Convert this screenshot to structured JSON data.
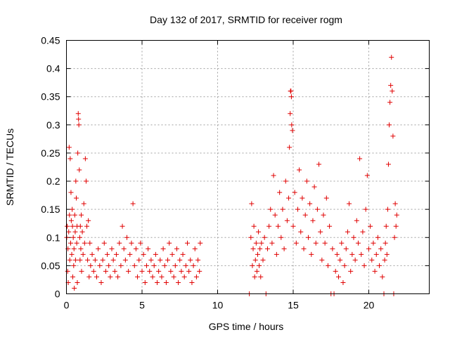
{
  "chart_data": {
    "type": "scatter",
    "title": "Day 132 of 2017, SRMTID for receiver rogm",
    "xlabel": "GPS time / hours",
    "ylabel": "SRMTID / TECUs",
    "xlim": [
      0,
      24
    ],
    "ylim": [
      0,
      0.45
    ],
    "x_ticks": [
      0,
      5,
      10,
      15,
      20
    ],
    "x_tick_labels": [
      "0",
      "5",
      "10",
      "15",
      "20"
    ],
    "y_ticks": [
      0,
      0.05,
      0.1,
      0.15,
      0.2,
      0.25,
      0.3,
      0.35,
      0.4,
      0.45
    ],
    "y_tick_labels": [
      "0",
      "0.05",
      "0.1",
      "0.15",
      "0.2",
      "0.25",
      "0.3",
      "0.35",
      "0.4",
      "0.45"
    ],
    "grid": true,
    "marker": "+",
    "color": "#e00000",
    "series": [
      {
        "name": "SRMTID",
        "points": [
          [
            0.02,
            0.1
          ],
          [
            0.05,
            0.12
          ],
          [
            0.08,
            0.04
          ],
          [
            0.1,
            0.08
          ],
          [
            0.12,
            0.02
          ],
          [
            0.15,
            0.11
          ],
          [
            0.18,
            0.26
          ],
          [
            0.2,
            0.14
          ],
          [
            0.22,
            0.06
          ],
          [
            0.25,
            0.24
          ],
          [
            0.28,
            0.09
          ],
          [
            0.3,
            0.18
          ],
          [
            0.32,
            0.13
          ],
          [
            0.35,
            0.07
          ],
          [
            0.38,
            0.15
          ],
          [
            0.4,
            0.12
          ],
          [
            0.42,
            0.03
          ],
          [
            0.45,
            0.1
          ],
          [
            0.48,
            0.05
          ],
          [
            0.5,
            0.08
          ],
          [
            0.52,
            0.01
          ],
          [
            0.55,
            0.14
          ],
          [
            0.58,
            0.11
          ],
          [
            0.6,
            0.06
          ],
          [
            0.62,
            0.2
          ],
          [
            0.65,
            0.17
          ],
          [
            0.68,
            0.09
          ],
          [
            0.7,
            0.12
          ],
          [
            0.72,
            0.02
          ],
          [
            0.75,
            0.25
          ],
          [
            0.78,
            0.32
          ],
          [
            0.8,
            0.31
          ],
          [
            0.82,
            0.3
          ],
          [
            0.85,
            0.22
          ],
          [
            0.88,
            0.1
          ],
          [
            0.9,
            0.06
          ],
          [
            0.92,
            0.12
          ],
          [
            0.95,
            0.08
          ],
          [
            0.98,
            0.14
          ],
          [
            1.0,
            0.04
          ],
          [
            1.05,
            0.11
          ],
          [
            1.1,
            0.07
          ],
          [
            1.15,
            0.16
          ],
          [
            1.2,
            0.09
          ],
          [
            1.25,
            0.24
          ],
          [
            1.3,
            0.2
          ],
          [
            1.35,
            0.12
          ],
          [
            1.4,
            0.06
          ],
          [
            1.45,
            0.13
          ],
          [
            1.5,
            0.03
          ],
          [
            1.55,
            0.09
          ],
          [
            1.6,
            0.05
          ],
          [
            1.7,
            0.07
          ],
          [
            1.8,
            0.04
          ],
          [
            1.9,
            0.06
          ],
          [
            2.0,
            0.03
          ],
          [
            2.1,
            0.08
          ],
          [
            2.2,
            0.05
          ],
          [
            2.3,
            0.02
          ],
          [
            2.4,
            0.06
          ],
          [
            2.5,
            0.09
          ],
          [
            2.6,
            0.04
          ],
          [
            2.7,
            0.07
          ],
          [
            2.8,
            0.05
          ],
          [
            2.9,
            0.03
          ],
          [
            3.0,
            0.08
          ],
          [
            3.1,
            0.06
          ],
          [
            3.2,
            0.04
          ],
          [
            3.3,
            0.07
          ],
          [
            3.4,
            0.03
          ],
          [
            3.5,
            0.09
          ],
          [
            3.6,
            0.05
          ],
          [
            3.7,
            0.12
          ],
          [
            3.8,
            0.08
          ],
          [
            3.9,
            0.06
          ],
          [
            4.0,
            0.1
          ],
          [
            4.1,
            0.04
          ],
          [
            4.2,
            0.07
          ],
          [
            4.3,
            0.09
          ],
          [
            4.4,
            0.16
          ],
          [
            4.5,
            0.05
          ],
          [
            4.6,
            0.08
          ],
          [
            4.7,
            0.03
          ],
          [
            4.8,
            0.06
          ],
          [
            4.9,
            0.09
          ],
          [
            5.0,
            0.04
          ],
          [
            5.1,
            0.07
          ],
          [
            5.2,
            0.02
          ],
          [
            5.3,
            0.05
          ],
          [
            5.4,
            0.08
          ],
          [
            5.5,
            0.04
          ],
          [
            5.6,
            0.06
          ],
          [
            5.7,
            0.03
          ],
          [
            5.8,
            0.05
          ],
          [
            5.9,
            0.07
          ],
          [
            6.0,
            0.02
          ],
          [
            6.1,
            0.04
          ],
          [
            6.2,
            0.06
          ],
          [
            6.3,
            0.03
          ],
          [
            6.4,
            0.08
          ],
          [
            6.5,
            0.05
          ],
          [
            6.6,
            0.02
          ],
          [
            6.7,
            0.06
          ],
          [
            6.8,
            0.09
          ],
          [
            6.9,
            0.04
          ],
          [
            7.0,
            0.07
          ],
          [
            7.1,
            0.03
          ],
          [
            7.2,
            0.05
          ],
          [
            7.3,
            0.08
          ],
          [
            7.4,
            0.02
          ],
          [
            7.5,
            0.06
          ],
          [
            7.6,
            0.04
          ],
          [
            7.7,
            0.07
          ],
          [
            7.8,
            0.03
          ],
          [
            7.9,
            0.05
          ],
          [
            8.0,
            0.09
          ],
          [
            8.1,
            0.04
          ],
          [
            8.2,
            0.06
          ],
          [
            8.3,
            0.02
          ],
          [
            8.4,
            0.05
          ],
          [
            8.5,
            0.08
          ],
          [
            8.6,
            0.03
          ],
          [
            8.7,
            0.06
          ],
          [
            8.8,
            0.04
          ],
          [
            8.85,
            0.09
          ],
          [
            12.1,
            0.0
          ],
          [
            12.2,
            0.1
          ],
          [
            12.25,
            0.16
          ],
          [
            12.3,
            0.05
          ],
          [
            12.35,
            0.08
          ],
          [
            12.4,
            0.12
          ],
          [
            12.45,
            0.03
          ],
          [
            12.5,
            0.06
          ],
          [
            12.55,
            0.09
          ],
          [
            12.6,
            0.04
          ],
          [
            12.65,
            0.07
          ],
          [
            12.7,
            0.11
          ],
          [
            12.75,
            0.05
          ],
          [
            12.8,
            0.08
          ],
          [
            12.85,
            0.03
          ],
          [
            12.9,
            0.09
          ],
          [
            13.0,
            0.06
          ],
          [
            13.1,
            0.1
          ],
          [
            13.2,
            0.0
          ],
          [
            13.3,
            0.08
          ],
          [
            13.4,
            0.12
          ],
          [
            13.5,
            0.15
          ],
          [
            13.6,
            0.09
          ],
          [
            13.7,
            0.21
          ],
          [
            13.8,
            0.14
          ],
          [
            13.9,
            0.07
          ],
          [
            14.0,
            0.12
          ],
          [
            14.1,
            0.18
          ],
          [
            14.2,
            0.1
          ],
          [
            14.3,
            0.15
          ],
          [
            14.4,
            0.08
          ],
          [
            14.5,
            0.2
          ],
          [
            14.6,
            0.13
          ],
          [
            14.7,
            0.17
          ],
          [
            14.75,
            0.26
          ],
          [
            14.8,
            0.32
          ],
          [
            14.82,
            0.36
          ],
          [
            14.85,
            0.36
          ],
          [
            14.88,
            0.35
          ],
          [
            14.9,
            0.3
          ],
          [
            14.95,
            0.29
          ],
          [
            15.0,
            0.12
          ],
          [
            15.1,
            0.18
          ],
          [
            15.2,
            0.09
          ],
          [
            15.3,
            0.15
          ],
          [
            15.4,
            0.22
          ],
          [
            15.5,
            0.11
          ],
          [
            15.6,
            0.17
          ],
          [
            15.7,
            0.08
          ],
          [
            15.8,
            0.14
          ],
          [
            15.9,
            0.2
          ],
          [
            16.0,
            0.1
          ],
          [
            16.1,
            0.16
          ],
          [
            16.2,
            0.07
          ],
          [
            16.3,
            0.13
          ],
          [
            16.4,
            0.19
          ],
          [
            16.5,
            0.09
          ],
          [
            16.6,
            0.15
          ],
          [
            16.7,
            0.23
          ],
          [
            16.8,
            0.11
          ],
          [
            16.9,
            0.06
          ],
          [
            17.0,
            0.14
          ],
          [
            17.1,
            0.09
          ],
          [
            17.2,
            0.17
          ],
          [
            17.3,
            0.05
          ],
          [
            17.4,
            0.12
          ],
          [
            17.5,
            0.0
          ],
          [
            17.6,
            0.08
          ],
          [
            17.7,
            0.0
          ],
          [
            17.8,
            0.04
          ],
          [
            17.9,
            0.07
          ],
          [
            18.0,
            0.03
          ],
          [
            18.1,
            0.06
          ],
          [
            18.2,
            0.09
          ],
          [
            18.3,
            0.02
          ],
          [
            18.4,
            0.05
          ],
          [
            18.5,
            0.08
          ],
          [
            18.6,
            0.11
          ],
          [
            18.7,
            0.16
          ],
          [
            18.8,
            0.04
          ],
          [
            18.9,
            0.07
          ],
          [
            19.0,
            0.1
          ],
          [
            19.1,
            0.06
          ],
          [
            19.2,
            0.13
          ],
          [
            19.3,
            0.09
          ],
          [
            19.4,
            0.24
          ],
          [
            19.5,
            0.07
          ],
          [
            19.6,
            0.11
          ],
          [
            19.7,
            0.05
          ],
          [
            19.8,
            0.15
          ],
          [
            19.9,
            0.21
          ],
          [
            20.0,
            0.08
          ],
          [
            20.1,
            0.12
          ],
          [
            20.2,
            0.06
          ],
          [
            20.3,
            0.09
          ],
          [
            20.4,
            0.04
          ],
          [
            20.5,
            0.07
          ],
          [
            20.6,
            0.1
          ],
          [
            20.7,
            0.05
          ],
          [
            20.8,
            0.08
          ],
          [
            20.9,
            0.03
          ],
          [
            21.0,
            0.0
          ],
          [
            21.05,
            0.06
          ],
          [
            21.1,
            0.09
          ],
          [
            21.15,
            0.12
          ],
          [
            21.2,
            0.07
          ],
          [
            21.25,
            0.15
          ],
          [
            21.3,
            0.23
          ],
          [
            21.35,
            0.3
          ],
          [
            21.4,
            0.34
          ],
          [
            21.45,
            0.37
          ],
          [
            21.5,
            0.42
          ],
          [
            21.55,
            0.36
          ],
          [
            21.6,
            0.28
          ],
          [
            21.65,
            0.0
          ],
          [
            21.7,
            0.1
          ],
          [
            21.75,
            0.16
          ],
          [
            21.8,
            0.12
          ],
          [
            21.85,
            0.14
          ]
        ]
      }
    ]
  }
}
